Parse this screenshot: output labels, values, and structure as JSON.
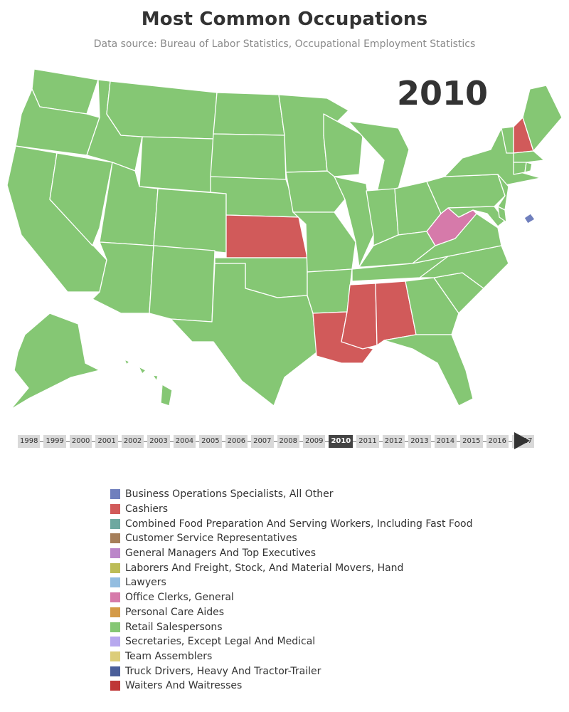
{
  "title": "Most Common Occupations",
  "subtitle": "Data source: Bureau of Labor Statistics, Occupational Employment Statistics",
  "current_year": "2010",
  "timeline": {
    "years": [
      "1998",
      "1999",
      "2000",
      "2001",
      "2002",
      "2003",
      "2004",
      "2005",
      "2006",
      "2007",
      "2008",
      "2009",
      "2010",
      "2011",
      "2012",
      "2013",
      "2014",
      "2015",
      "2016",
      "2017"
    ],
    "selected": "2010"
  },
  "legend": [
    {
      "label": "Business Operations Specialists, All Other",
      "color": "#6f7fbd"
    },
    {
      "label": "Cashiers",
      "color": "#d15a5a"
    },
    {
      "label": "Combined Food Preparation And Serving Workers, Including Fast Food",
      "color": "#6ea8a0"
    },
    {
      "label": "Customer Service Representatives",
      "color": "#a67f5a"
    },
    {
      "label": "General Managers And Top Executives",
      "color": "#bb86c9"
    },
    {
      "label": "Laborers And Freight, Stock, And Material Movers, Hand",
      "color": "#bcbc57"
    },
    {
      "label": "Lawyers",
      "color": "#93bde0"
    },
    {
      "label": "Office Clerks, General",
      "color": "#d67aaa"
    },
    {
      "label": "Personal Care Aides",
      "color": "#d49a47"
    },
    {
      "label": "Retail Salespersons",
      "color": "#85c774"
    },
    {
      "label": "Secretaries, Except Legal And Medical",
      "color": "#b7a8ee"
    },
    {
      "label": "Team Assemblers",
      "color": "#dccd7a"
    },
    {
      "label": "Truck Drivers, Heavy And Tractor-Trailer",
      "color": "#4b5f9a"
    },
    {
      "label": "Waiters And Waitresses",
      "color": "#bf3636"
    }
  ],
  "map_data": {
    "default_occupation": "Retail Salespersons",
    "states": {
      "KS": "Cashiers",
      "LA": "Cashiers",
      "MS": "Cashiers",
      "AL": "Cashiers",
      "NH": "Cashiers",
      "WV": "Office Clerks, General",
      "DC": "Business Operations Specialists, All Other"
    }
  }
}
